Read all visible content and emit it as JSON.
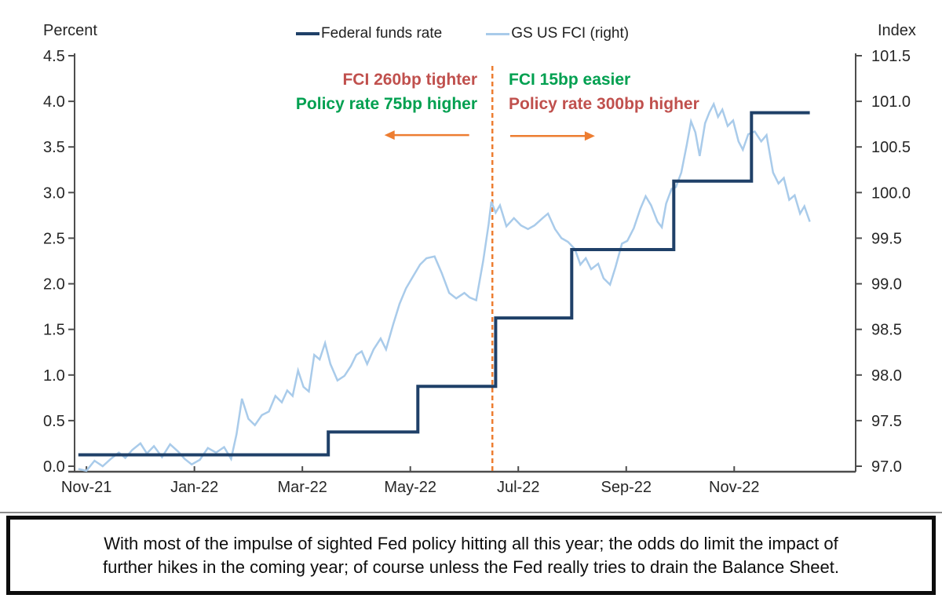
{
  "legend": [
    {
      "label": "Federal funds rate",
      "color": "#1f4068",
      "thickness": 4
    },
    {
      "label": "GS US FCI (right)",
      "color": "#a9cbea",
      "thickness": 3
    }
  ],
  "annotations": {
    "left_block": {
      "line1": "FCI 260bp tighter",
      "line1_color": "#c0504d",
      "line2": "Policy rate 75bp higher",
      "line2_color": "#00a050"
    },
    "right_block": {
      "line1": "FCI 15bp easier",
      "line1_color": "#00a050",
      "line2": "Policy rate 300bp higher",
      "line2_color": "#c0504d"
    }
  },
  "caption": {
    "lines": [
      "With most of the impulse of sighted Fed policy hitting all this year; the odds do limit the impact of",
      "further hikes in the coming year; of course unless the Fed really tries to drain the Balance Sheet."
    ]
  },
  "chart_data": {
    "type": "line",
    "title": "",
    "x_unit": "months since Nov-2021 tick",
    "x_range": [
      -0.22,
      14.25
    ],
    "x_ticks": {
      "positions_m": [
        0,
        2,
        4,
        6,
        8,
        10,
        12
      ],
      "labels": [
        "Nov-21",
        "Jan-22",
        "Mar-22",
        "May-22",
        "Jul-22",
        "Sep-22",
        "Nov-22"
      ]
    },
    "left_axis": {
      "title": "Percent",
      "min": 0,
      "max": 4.5,
      "tick_step": 0.5,
      "tick_labels": [
        "4.5",
        "4.0",
        "3.5",
        "3.0",
        "2.5",
        "2.0",
        "1.5",
        "1.0",
        "0.5",
        "0.0"
      ]
    },
    "right_axis": {
      "title": "Index",
      "min": 97.0,
      "max": 101.5,
      "tick_step": 0.5,
      "tick_labels": [
        "101.5",
        "101.0",
        "100.5",
        "100.0",
        "99.5",
        "99.0",
        "98.5",
        "98.0",
        "97.5",
        "97.0"
      ]
    },
    "grid": false,
    "legend_position": "top",
    "event_line": {
      "m": 7.52,
      "color": "#ed7d31",
      "style": "dashed"
    },
    "arrows": [
      {
        "direction": "left",
        "from_m": 7.09,
        "to_m": 5.52,
        "y_left_axis": 3.63,
        "color": "#ed7d31"
      },
      {
        "direction": "right",
        "from_m": 7.85,
        "to_m": 9.42,
        "y_left_axis": 3.62,
        "color": "#ed7d31"
      }
    ],
    "series": [
      {
        "name": "GS US FCI (right)",
        "axis": "right",
        "color": "#a9cbea",
        "width": 2.5,
        "points": [
          [
            -0.15,
            96.97
          ],
          [
            0.0,
            96.95
          ],
          [
            0.15,
            97.06
          ],
          [
            0.3,
            97.0
          ],
          [
            0.45,
            97.08
          ],
          [
            0.6,
            97.15
          ],
          [
            0.72,
            97.09
          ],
          [
            0.85,
            97.18
          ],
          [
            1.0,
            97.25
          ],
          [
            1.12,
            97.14
          ],
          [
            1.25,
            97.22
          ],
          [
            1.4,
            97.1
          ],
          [
            1.55,
            97.24
          ],
          [
            1.7,
            97.16
          ],
          [
            1.82,
            97.08
          ],
          [
            1.95,
            97.02
          ],
          [
            2.1,
            97.07
          ],
          [
            2.25,
            97.2
          ],
          [
            2.4,
            97.15
          ],
          [
            2.55,
            97.21
          ],
          [
            2.68,
            97.08
          ],
          [
            2.78,
            97.35
          ],
          [
            2.88,
            97.74
          ],
          [
            3.0,
            97.52
          ],
          [
            3.12,
            97.45
          ],
          [
            3.25,
            97.56
          ],
          [
            3.38,
            97.6
          ],
          [
            3.5,
            97.77
          ],
          [
            3.62,
            97.7
          ],
          [
            3.72,
            97.83
          ],
          [
            3.82,
            97.77
          ],
          [
            3.92,
            98.05
          ],
          [
            4.02,
            97.87
          ],
          [
            4.12,
            97.82
          ],
          [
            4.22,
            98.22
          ],
          [
            4.32,
            98.17
          ],
          [
            4.42,
            98.35
          ],
          [
            4.52,
            98.12
          ],
          [
            4.65,
            97.94
          ],
          [
            4.78,
            97.99
          ],
          [
            4.9,
            98.1
          ],
          [
            5.0,
            98.22
          ],
          [
            5.1,
            98.26
          ],
          [
            5.2,
            98.12
          ],
          [
            5.32,
            98.28
          ],
          [
            5.45,
            98.4
          ],
          [
            5.55,
            98.28
          ],
          [
            5.68,
            98.55
          ],
          [
            5.8,
            98.78
          ],
          [
            5.92,
            98.95
          ],
          [
            6.05,
            99.08
          ],
          [
            6.18,
            99.21
          ],
          [
            6.3,
            99.28
          ],
          [
            6.45,
            99.3
          ],
          [
            6.58,
            99.12
          ],
          [
            6.72,
            98.9
          ],
          [
            6.85,
            98.84
          ],
          [
            7.0,
            98.9
          ],
          [
            7.1,
            98.85
          ],
          [
            7.22,
            98.82
          ],
          [
            7.35,
            99.25
          ],
          [
            7.45,
            99.65
          ],
          [
            7.5,
            99.9
          ],
          [
            7.58,
            99.78
          ],
          [
            7.66,
            99.86
          ],
          [
            7.78,
            99.63
          ],
          [
            7.92,
            99.72
          ],
          [
            8.05,
            99.64
          ],
          [
            8.18,
            99.6
          ],
          [
            8.3,
            99.64
          ],
          [
            8.45,
            99.72
          ],
          [
            8.55,
            99.77
          ],
          [
            8.68,
            99.6
          ],
          [
            8.8,
            99.5
          ],
          [
            8.92,
            99.46
          ],
          [
            9.05,
            99.38
          ],
          [
            9.15,
            99.21
          ],
          [
            9.25,
            99.28
          ],
          [
            9.35,
            99.16
          ],
          [
            9.48,
            99.22
          ],
          [
            9.58,
            99.06
          ],
          [
            9.7,
            98.99
          ],
          [
            9.8,
            99.18
          ],
          [
            9.92,
            99.44
          ],
          [
            10.02,
            99.47
          ],
          [
            10.14,
            99.61
          ],
          [
            10.26,
            99.82
          ],
          [
            10.36,
            99.96
          ],
          [
            10.46,
            99.86
          ],
          [
            10.58,
            99.68
          ],
          [
            10.66,
            99.62
          ],
          [
            10.74,
            99.88
          ],
          [
            10.84,
            100.04
          ],
          [
            10.92,
            100.06
          ],
          [
            11.02,
            100.22
          ],
          [
            11.12,
            100.52
          ],
          [
            11.2,
            100.78
          ],
          [
            11.28,
            100.66
          ],
          [
            11.36,
            100.4
          ],
          [
            11.46,
            100.76
          ],
          [
            11.54,
            100.88
          ],
          [
            11.62,
            100.97
          ],
          [
            11.7,
            100.83
          ],
          [
            11.78,
            100.91
          ],
          [
            11.88,
            100.73
          ],
          [
            11.98,
            100.79
          ],
          [
            12.08,
            100.56
          ],
          [
            12.16,
            100.47
          ],
          [
            12.26,
            100.64
          ],
          [
            12.38,
            100.67
          ],
          [
            12.5,
            100.56
          ],
          [
            12.6,
            100.63
          ],
          [
            12.72,
            100.22
          ],
          [
            12.82,
            100.1
          ],
          [
            12.92,
            100.16
          ],
          [
            13.02,
            99.92
          ],
          [
            13.12,
            99.97
          ],
          [
            13.22,
            99.77
          ],
          [
            13.3,
            99.85
          ],
          [
            13.4,
            99.68
          ]
        ]
      },
      {
        "name": "Federal funds rate",
        "axis": "left",
        "color": "#1f4068",
        "width": 4,
        "points": [
          [
            -0.15,
            0.125
          ],
          [
            4.48,
            0.125
          ],
          [
            4.48,
            0.375
          ],
          [
            6.14,
            0.375
          ],
          [
            6.14,
            0.875
          ],
          [
            7.58,
            0.875
          ],
          [
            7.58,
            1.625
          ],
          [
            8.99,
            1.625
          ],
          [
            8.99,
            2.375
          ],
          [
            10.88,
            2.375
          ],
          [
            10.88,
            3.125
          ],
          [
            12.32,
            3.125
          ],
          [
            12.32,
            3.875
          ],
          [
            13.4,
            3.875
          ]
        ]
      }
    ]
  }
}
